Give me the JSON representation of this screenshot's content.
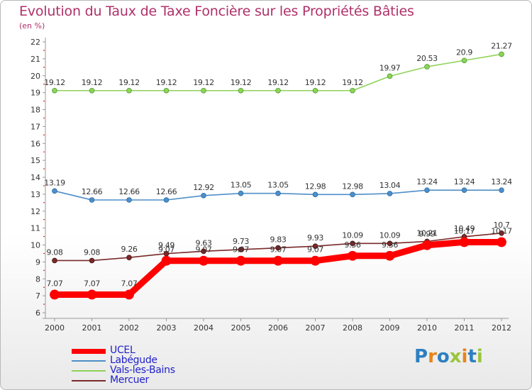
{
  "title": "Evolution du Taux de Taxe Foncière sur les Propriétés Bâties",
  "unit": "(en %)",
  "logo": {
    "letters": [
      "P",
      "r",
      "o",
      "x",
      "i",
      "t",
      "i"
    ],
    "colors": [
      "#2d7fc1",
      "#e8841a",
      "#2d7fc1",
      "#9bc53d",
      "#e8841a",
      "#2d7fc1",
      "#9bc53d"
    ]
  },
  "chart_data": {
    "type": "line",
    "title": "Evolution du Taux de Taxe Foncière sur les Propriétés Bâties",
    "ylabel": "(en %)",
    "xlabel": "",
    "ylim": [
      6,
      22
    ],
    "grid": false,
    "categories": [
      "2000",
      "2001",
      "2002",
      "2003",
      "2004",
      "2005",
      "2006",
      "2007",
      "2008",
      "2009",
      "2010",
      "2011",
      "2012"
    ],
    "yticks": [
      "6",
      "7",
      "8",
      "9",
      "10",
      "11",
      "12",
      "13",
      "14",
      "15",
      "16",
      "17",
      "18",
      "19",
      "20",
      "21",
      "22"
    ],
    "series": [
      {
        "name": "UCEL",
        "color": "#ff0000",
        "values": [
          7.07,
          7.07,
          7.07,
          9.07,
          9.07,
          9.07,
          9.07,
          9.07,
          9.36,
          9.36,
          9.99,
          10.17,
          10.17
        ],
        "labels": [
          "7.07",
          "7.07",
          "7.07",
          "9.07",
          "9.07",
          "9.07",
          "9.07",
          "9.07",
          "9.36",
          "9.36",
          "9.99",
          "10.17",
          "10.17"
        ]
      },
      {
        "name": "Labégude",
        "color": "#4f8fc8",
        "values": [
          13.19,
          12.66,
          12.66,
          12.66,
          12.92,
          13.05,
          13.05,
          12.98,
          12.98,
          13.04,
          13.24,
          13.24,
          13.24
        ],
        "labels": [
          "13.19",
          "12.66",
          "12.66",
          "12.66",
          "12.92",
          "13.05",
          "13.05",
          "12.98",
          "12.98",
          "13.04",
          "13.24",
          "13.24",
          "13.24"
        ]
      },
      {
        "name": "Vals-les-Bains",
        "color": "#8fd35a",
        "values": [
          19.12,
          19.12,
          19.12,
          19.12,
          19.12,
          19.12,
          19.12,
          19.12,
          19.12,
          19.97,
          20.53,
          20.9,
          21.27
        ],
        "labels": [
          "19.12",
          "19.12",
          "19.12",
          "19.12",
          "19.12",
          "19.12",
          "19.12",
          "19.12",
          "19.12",
          "19.97",
          "20.53",
          "20.9",
          "21.27"
        ]
      },
      {
        "name": "Mercuer",
        "color": "#7a2a2a",
        "values": [
          9.08,
          9.08,
          9.26,
          9.49,
          9.63,
          9.73,
          9.83,
          9.93,
          10.09,
          10.09,
          10.21,
          10.49,
          10.7
        ],
        "labels": [
          "9.08",
          "9.08",
          "9.26",
          "9.49",
          "9.63",
          "9.73",
          "9.83",
          "9.93",
          "10.09",
          "10.09",
          "10.21",
          "10.49",
          "10.7"
        ]
      }
    ]
  }
}
